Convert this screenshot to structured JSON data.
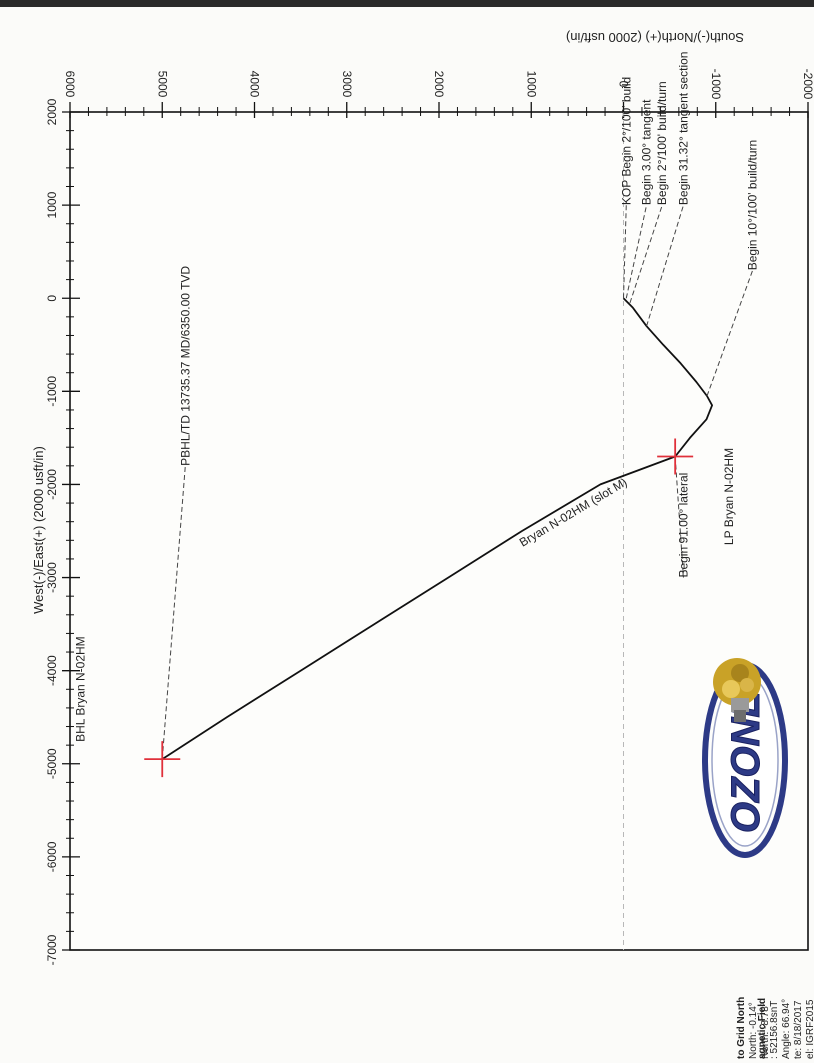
{
  "chart_data": {
    "type": "line",
    "title": "",
    "xlabel": "West(-)/East(+) (2000 usft/in)",
    "ylabel": "South(-)/North(+) (2000 usft/in)",
    "xlim": [
      -7000,
      2000
    ],
    "ylim": [
      -2000,
      6000
    ],
    "x_ticks": [
      "-7000",
      "-6000",
      "-5000",
      "-4000",
      "-3000",
      "-2000",
      "-1000",
      "0",
      "1000",
      "2000"
    ],
    "y_ticks": [
      "6000",
      "5000",
      "4000",
      "3000",
      "2000",
      "1000",
      "0",
      "-1000",
      "-2000"
    ],
    "grid": false,
    "series": [
      {
        "name": "Bryan N-02HM (slot M)",
        "color": "#111111",
        "x": [
          0,
          -100,
          -300,
          -500,
          -700,
          -900,
          -1050,
          -1150,
          -1300,
          -1500,
          -1700,
          -2000,
          -2500,
          -3000,
          -3500,
          -4000,
          -4500,
          -4950
        ],
        "y": [
          0,
          -100,
          -250,
          -430,
          -620,
          -790,
          -905,
          -960,
          -900,
          -720,
          -560,
          250,
          1100,
          1900,
          2700,
          3500,
          4300,
          5000
        ]
      }
    ],
    "markers": [
      {
        "label": "LP Bryan N-02HM",
        "x": -1700,
        "y": -560,
        "color": "#e0303a"
      },
      {
        "label": "BHL Bryan N-02HM",
        "x": -4950,
        "y": 5000,
        "color": "#e0303a"
      }
    ],
    "annotations": [
      {
        "text": "KOP Begin 2°/100' build",
        "x": 0,
        "y": 0,
        "label_x": 1000,
        "label_y": -30
      },
      {
        "text": "Begin 3.00° tangent",
        "x": 0,
        "y": -30,
        "label_x": 1000,
        "label_y": -250
      },
      {
        "text": "Begin 2°/100' build/turn",
        "x": -50,
        "y": -70,
        "label_x": 1000,
        "label_y": -420
      },
      {
        "text": "Begin 31.32° tangent section",
        "x": -300,
        "y": -250,
        "label_x": 1000,
        "label_y": -650
      },
      {
        "text": "Begin 10°/100' build/turn",
        "x": -1050,
        "y": -905,
        "label_x": 300,
        "label_y": -1400
      },
      {
        "text": "Begin 91.00° lateral",
        "x": -1700,
        "y": -560,
        "label_x": -3000,
        "label_y": -650
      },
      {
        "text": "PBHL/TD 13735.37 MD/6350.00 TVD",
        "x": -4950,
        "y": 5000,
        "label_x": -1800,
        "label_y": 4750
      }
    ],
    "north_reference": {
      "lines": [
        "to Grid North",
        "North: -0.14°",
        "North: -8.78°"
      ]
    },
    "magnetic_field": {
      "lines": [
        "agnetic Field",
        ": 52156.8snT",
        "Angle: 66.94°",
        "te: 8/18/2017",
        "el: IGRF2015"
      ]
    },
    "logo_text": "OZONE",
    "colors": {
      "trajectory": "#111111",
      "marker": "#e0303a",
      "leader": "#444444",
      "frame": "#111111",
      "logo_blue": "#2d3a86",
      "logo_gold": "#c9a227"
    }
  }
}
